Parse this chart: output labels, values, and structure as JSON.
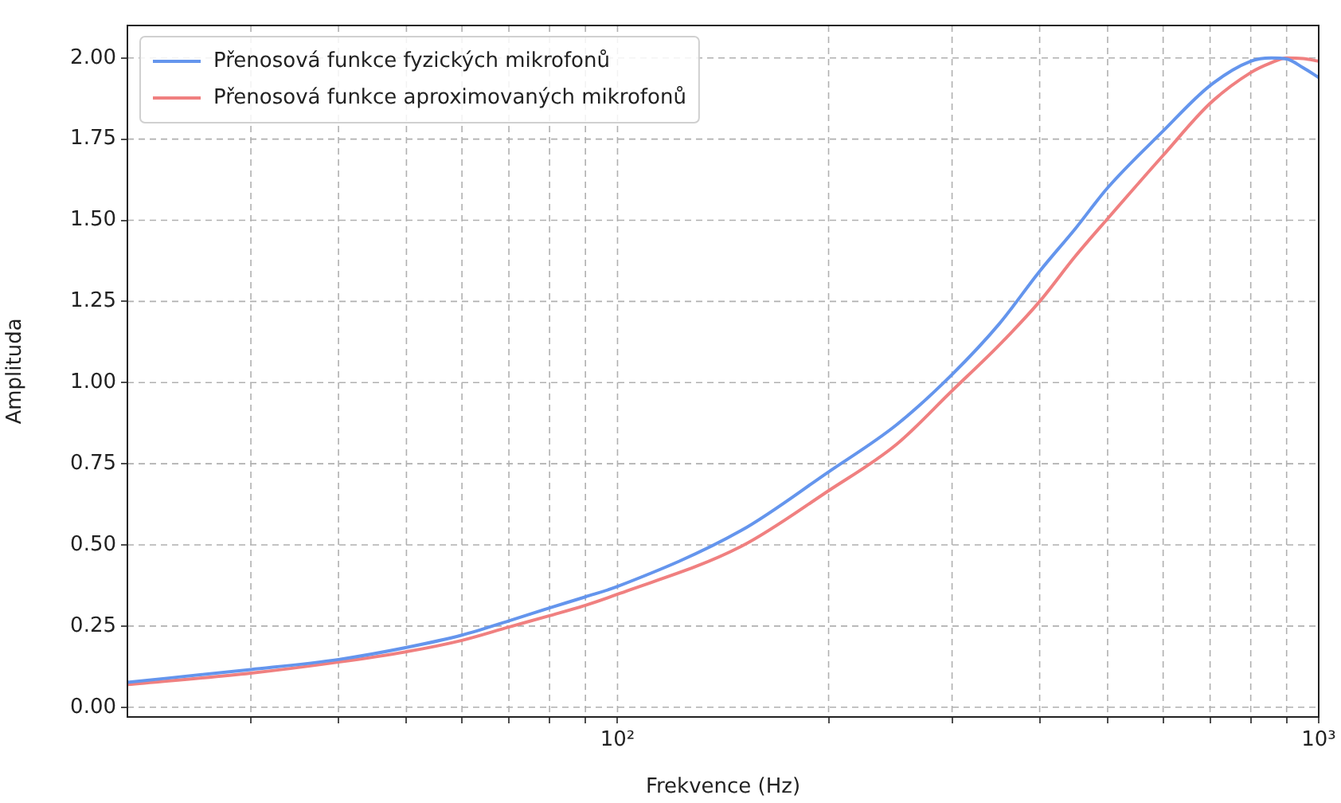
{
  "chart_data": {
    "type": "line",
    "xlabel": "Frekvence (Hz)",
    "ylabel": "Amplituda",
    "log": "x",
    "grid": true,
    "legend": "top left",
    "marker": "none",
    "line_style": "solid",
    "x": [
      20,
      30,
      40,
      50,
      60,
      70,
      80,
      90,
      100,
      150,
      200,
      250,
      300,
      350,
      400,
      450,
      500,
      600,
      700,
      800,
      855,
      900,
      950,
      1000
    ],
    "series": [
      {
        "name": "Přenosová funkce fyzických mikrofonů",
        "color": "#6495ed",
        "values": [
          0.077,
          0.116,
          0.147,
          0.184,
          0.222,
          0.266,
          0.306,
          0.34,
          0.372,
          0.544,
          0.725,
          0.87,
          1.025,
          1.18,
          1.343,
          1.475,
          1.6,
          1.775,
          1.915,
          1.99,
          2.0,
          1.997,
          1.97,
          1.94
        ]
      },
      {
        "name": "Přenosová funkce aproximovaných mikrofonů",
        "color": "#f08080",
        "values": [
          0.07,
          0.105,
          0.139,
          0.171,
          0.206,
          0.247,
          0.282,
          0.314,
          0.348,
          0.495,
          0.667,
          0.81,
          0.975,
          1.115,
          1.25,
          1.39,
          1.505,
          1.7,
          1.86,
          1.955,
          1.985,
          2.0,
          1.998,
          1.99
        ]
      }
    ],
    "xlim": [
      20,
      1000
    ],
    "xticks": [
      {
        "value": 30,
        "label": null
      },
      {
        "value": 40,
        "label": null
      },
      {
        "value": 50,
        "label": null
      },
      {
        "value": 60,
        "label": null
      },
      {
        "value": 70,
        "label": null
      },
      {
        "value": 80,
        "label": null
      },
      {
        "value": 90,
        "label": null
      },
      {
        "value": 100,
        "label": "10²"
      },
      {
        "value": 200,
        "label": null
      },
      {
        "value": 300,
        "label": null
      },
      {
        "value": 400,
        "label": null
      },
      {
        "value": 500,
        "label": null
      },
      {
        "value": 600,
        "label": null
      },
      {
        "value": 700,
        "label": null
      },
      {
        "value": 800,
        "label": null
      },
      {
        "value": 900,
        "label": null
      },
      {
        "value": 1000,
        "label": "10³"
      }
    ],
    "ylim": [
      -0.03,
      2.1
    ],
    "yticks": [
      {
        "value": 0,
        "label": "0.00"
      },
      {
        "value": 0.25,
        "label": "0.25"
      },
      {
        "value": 0.5,
        "label": "0.50"
      },
      {
        "value": 0.75,
        "label": "0.75"
      },
      {
        "value": 1,
        "label": "1.00"
      },
      {
        "value": 1.25,
        "label": "1.25"
      },
      {
        "value": 1.5,
        "label": "1.50"
      },
      {
        "value": 1.75,
        "label": "1.75"
      },
      {
        "value": 2,
        "label": "2.00"
      }
    ]
  }
}
